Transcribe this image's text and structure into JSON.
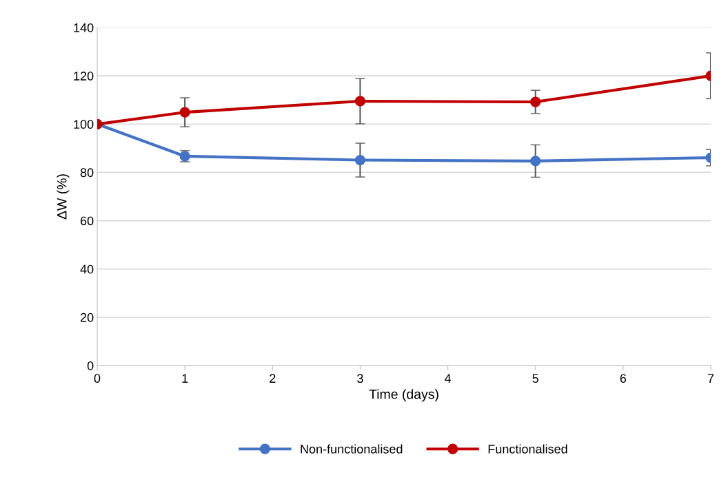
{
  "chart_data": {
    "type": "line",
    "xlabel": "Time (days)",
    "ylabel": "ΔW (%)",
    "x": [
      0,
      1,
      3,
      5,
      7
    ],
    "series": [
      {
        "name": "Non-functionalised",
        "color": "#4472c4",
        "values": [
          100,
          86.7,
          85.1,
          84.7,
          86.1
        ],
        "errors": [
          null,
          2.3,
          7,
          6.7,
          3.4
        ]
      },
      {
        "name": "Functionalised",
        "color": "#c00000",
        "values": [
          100,
          104.9,
          109.5,
          109.2,
          120.0
        ],
        "errors": [
          null,
          6,
          9.4,
          4.8,
          9.5
        ]
      }
    ],
    "xlim": [
      0,
      7
    ],
    "xticks": [
      0,
      1,
      2,
      3,
      4,
      5,
      6,
      7
    ],
    "ylim": [
      0,
      140
    ],
    "yticks": [
      0,
      20,
      40,
      60,
      80,
      100,
      120,
      140
    ],
    "grid": "y",
    "legend": "bottom",
    "marker": "circle",
    "line_style": "solid"
  }
}
